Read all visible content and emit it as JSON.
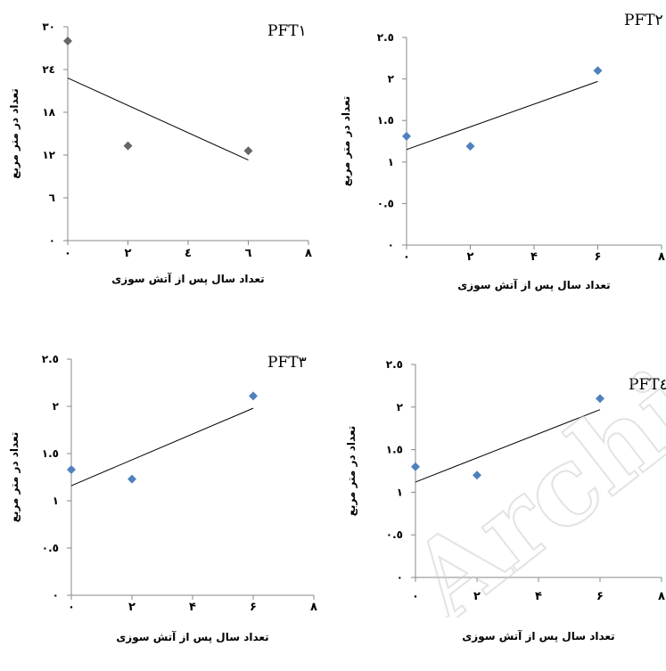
{
  "chart_data": [
    {
      "type": "scatter",
      "title": "PFT١",
      "xlabel": "تعداد سال پس  از آتش سوزی",
      "ylabel": "تعداد در متر مربع",
      "xlim": [
        0,
        8
      ],
      "ylim": [
        0,
        30
      ],
      "x_ticks": [
        0,
        2,
        4,
        6,
        8
      ],
      "x_tick_labels": [
        "٠",
        "٢",
        "٤",
        "٦",
        "٨"
      ],
      "y_ticks": [
        0,
        6,
        12,
        18,
        24,
        30
      ],
      "y_tick_labels": [
        "٠",
        "٦",
        "١٢",
        "١٨",
        "٢٤",
        "٣٠"
      ],
      "points": [
        {
          "x": 0,
          "y": 28
        },
        {
          "x": 2,
          "y": 13.3
        },
        {
          "x": 6,
          "y": 12.6
        }
      ],
      "trendline": [
        {
          "x": 0,
          "y": 22.8
        },
        {
          "x": 6,
          "y": 11.3
        }
      ],
      "marker_color": "#666666"
    },
    {
      "type": "scatter",
      "title": "PFT٢",
      "xlabel": "تعداد سال پس از آتش سوزی",
      "ylabel": "تعداد در متر مربع",
      "xlim": [
        0,
        8
      ],
      "ylim": [
        0,
        2.5
      ],
      "x_ticks": [
        0,
        2,
        4,
        6,
        8
      ],
      "x_tick_labels": [
        "٠",
        "٢",
        "۴",
        "۶",
        "٨"
      ],
      "y_ticks": [
        0,
        0.5,
        1,
        1.5,
        2,
        2.5
      ],
      "y_tick_labels": [
        "٠",
        "٠.٥",
        "١",
        "١.٥",
        "٢",
        "٢.٥"
      ],
      "points": [
        {
          "x": 0,
          "y": 1.31
        },
        {
          "x": 2,
          "y": 1.19
        },
        {
          "x": 6,
          "y": 2.1
        }
      ],
      "trendline": [
        {
          "x": 0,
          "y": 1.15
        },
        {
          "x": 6,
          "y": 1.97
        }
      ],
      "marker_color": "#4f81bd"
    },
    {
      "type": "scatter",
      "title": "PFT٣",
      "xlabel": "تعداد سال پس از آتش سوزی",
      "ylabel": "تعداد در متر مربع",
      "xlim": [
        0,
        8
      ],
      "ylim": [
        0,
        2.5
      ],
      "x_ticks": [
        0,
        2,
        4,
        6,
        8
      ],
      "x_tick_labels": [
        "٠",
        "٢",
        "۴",
        "۶",
        "٨"
      ],
      "y_ticks": [
        0,
        0.5,
        1,
        1.5,
        2,
        2.5
      ],
      "y_tick_labels": [
        "٠",
        "٠.٥",
        "١",
        "١.٥",
        "٢",
        "٢.٥"
      ],
      "points": [
        {
          "x": 0,
          "y": 1.33
        },
        {
          "x": 2,
          "y": 1.23
        },
        {
          "x": 6,
          "y": 2.11
        }
      ],
      "trendline": [
        {
          "x": 0,
          "y": 1.16
        },
        {
          "x": 6,
          "y": 1.98
        }
      ],
      "marker_color": "#4f81bd"
    },
    {
      "type": "scatter",
      "title": "PFT٤",
      "xlabel": "تعداد سال پس از آتش سوزی",
      "ylabel": "تعداد در متر مربع",
      "xlim": [
        0,
        8
      ],
      "ylim": [
        0,
        2.5
      ],
      "x_ticks": [
        0,
        2,
        4,
        6,
        8
      ],
      "x_tick_labels": [
        "٠",
        "٢",
        "۴",
        "۶",
        "٨"
      ],
      "y_ticks": [
        0,
        0.5,
        1,
        1.5,
        2,
        2.5
      ],
      "y_tick_labels": [
        "٠",
        "٠.٥",
        "١",
        "١.٥",
        "٢",
        "٢.٥"
      ],
      "points": [
        {
          "x": 0,
          "y": 1.3
        },
        {
          "x": 2,
          "y": 1.2
        },
        {
          "x": 6,
          "y": 2.1
        }
      ],
      "trendline": [
        {
          "x": 0,
          "y": 1.12
        },
        {
          "x": 6,
          "y": 1.97
        }
      ],
      "marker_color": "#4f81bd"
    }
  ],
  "watermark_text": "Archive of SID"
}
